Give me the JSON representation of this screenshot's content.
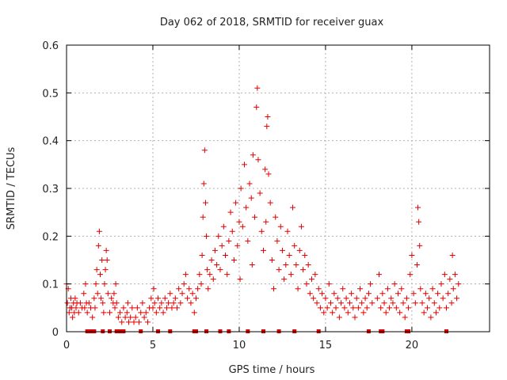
{
  "chart_data": {
    "type": "scatter",
    "title": "Day 062 of 2018, SRMTID for receiver guax",
    "xlabel": "GPS time / hours",
    "ylabel": "SRMTID / TECUs",
    "xlim": [
      0,
      24.5
    ],
    "ylim": [
      0,
      0.6
    ],
    "xticks": [
      0,
      5,
      10,
      15,
      20
    ],
    "xtick_labels": [
      "0",
      "5",
      "10",
      "15",
      "20"
    ],
    "yticks": [
      0,
      0.1,
      0.2,
      0.3,
      0.4,
      0.5,
      0.6
    ],
    "ytick_labels": [
      "0",
      "0.1",
      "0.2",
      "0.3",
      "0.4",
      "0.5",
      "0.6"
    ],
    "grid": true,
    "marker": "+",
    "color": "#e00000",
    "series": [
      {
        "name": "SRMTID",
        "points": [
          [
            0.0,
            0.1
          ],
          [
            0.05,
            0.06
          ],
          [
            0.1,
            0.09
          ],
          [
            0.15,
            0.04
          ],
          [
            0.2,
            0.05
          ],
          [
            0.25,
            0.07
          ],
          [
            0.3,
            0.05
          ],
          [
            0.35,
            0.03
          ],
          [
            0.4,
            0.06
          ],
          [
            0.45,
            0.04
          ],
          [
            0.5,
            0.07
          ],
          [
            0.55,
            0.05
          ],
          [
            0.6,
            0.06
          ],
          [
            0.7,
            0.04
          ],
          [
            0.8,
            0.06
          ],
          [
            0.9,
            0.05
          ],
          [
            1.0,
            0.08
          ],
          [
            1.05,
            0.05
          ],
          [
            1.1,
            0.1
          ],
          [
            1.15,
            0.06
          ],
          [
            1.2,
            0.04
          ],
          [
            1.3,
            0.06
          ],
          [
            1.4,
            0.05
          ],
          [
            1.5,
            0.03
          ],
          [
            1.6,
            0.07
          ],
          [
            1.65,
            0.05
          ],
          [
            1.7,
            0.1
          ],
          [
            1.75,
            0.13
          ],
          [
            1.8,
            0.08
          ],
          [
            1.85,
            0.18
          ],
          [
            1.9,
            0.21
          ],
          [
            1.95,
            0.12
          ],
          [
            2.0,
            0.07
          ],
          [
            2.05,
            0.15
          ],
          [
            2.1,
            0.06
          ],
          [
            2.15,
            0.04
          ],
          [
            2.2,
            0.1
          ],
          [
            2.25,
            0.13
          ],
          [
            2.3,
            0.17
          ],
          [
            2.35,
            0.15
          ],
          [
            2.4,
            0.08
          ],
          [
            2.5,
            0.04
          ],
          [
            2.6,
            0.07
          ],
          [
            2.7,
            0.06
          ],
          [
            2.75,
            0.08
          ],
          [
            2.8,
            0.05
          ],
          [
            2.85,
            0.1
          ],
          [
            2.9,
            0.06
          ],
          [
            3.0,
            0.03
          ],
          [
            3.1,
            0.04
          ],
          [
            3.2,
            0.02
          ],
          [
            3.3,
            0.05
          ],
          [
            3.4,
            0.03
          ],
          [
            3.5,
            0.04
          ],
          [
            3.55,
            0.06
          ],
          [
            3.6,
            0.02
          ],
          [
            3.7,
            0.03
          ],
          [
            3.8,
            0.05
          ],
          [
            3.9,
            0.02
          ],
          [
            4.0,
            0.03
          ],
          [
            4.1,
            0.05
          ],
          [
            4.2,
            0.02
          ],
          [
            4.3,
            0.04
          ],
          [
            4.4,
            0.06
          ],
          [
            4.5,
            0.03
          ],
          [
            4.6,
            0.04
          ],
          [
            4.7,
            0.02
          ],
          [
            4.8,
            0.05
          ],
          [
            4.9,
            0.07
          ],
          [
            5.0,
            0.05
          ],
          [
            5.05,
            0.09
          ],
          [
            5.1,
            0.06
          ],
          [
            5.2,
            0.04
          ],
          [
            5.3,
            0.07
          ],
          [
            5.4,
            0.05
          ],
          [
            5.5,
            0.06
          ],
          [
            5.6,
            0.04
          ],
          [
            5.7,
            0.07
          ],
          [
            5.8,
            0.05
          ],
          [
            5.9,
            0.06
          ],
          [
            6.0,
            0.08
          ],
          [
            6.1,
            0.05
          ],
          [
            6.2,
            0.06
          ],
          [
            6.3,
            0.07
          ],
          [
            6.4,
            0.05
          ],
          [
            6.5,
            0.09
          ],
          [
            6.6,
            0.06
          ],
          [
            6.7,
            0.08
          ],
          [
            6.8,
            0.1
          ],
          [
            6.9,
            0.12
          ],
          [
            7.0,
            0.07
          ],
          [
            7.1,
            0.09
          ],
          [
            7.2,
            0.06
          ],
          [
            7.3,
            0.08
          ],
          [
            7.4,
            0.04
          ],
          [
            7.5,
            0.07
          ],
          [
            7.6,
            0.09
          ],
          [
            7.7,
            0.12
          ],
          [
            7.8,
            0.1
          ],
          [
            7.85,
            0.16
          ],
          [
            7.9,
            0.24
          ],
          [
            7.95,
            0.31
          ],
          [
            8.0,
            0.38
          ],
          [
            8.05,
            0.27
          ],
          [
            8.1,
            0.2
          ],
          [
            8.15,
            0.13
          ],
          [
            8.2,
            0.09
          ],
          [
            8.3,
            0.12
          ],
          [
            8.4,
            0.15
          ],
          [
            8.5,
            0.11
          ],
          [
            8.6,
            0.17
          ],
          [
            8.7,
            0.14
          ],
          [
            8.8,
            0.2
          ],
          [
            8.9,
            0.13
          ],
          [
            9.0,
            0.18
          ],
          [
            9.1,
            0.22
          ],
          [
            9.2,
            0.16
          ],
          [
            9.3,
            0.12
          ],
          [
            9.4,
            0.19
          ],
          [
            9.5,
            0.25
          ],
          [
            9.6,
            0.21
          ],
          [
            9.7,
            0.15
          ],
          [
            9.8,
            0.27
          ],
          [
            9.9,
            0.18
          ],
          [
            10.0,
            0.23
          ],
          [
            10.05,
            0.11
          ],
          [
            10.1,
            0.3
          ],
          [
            10.2,
            0.22
          ],
          [
            10.3,
            0.35
          ],
          [
            10.4,
            0.26
          ],
          [
            10.5,
            0.19
          ],
          [
            10.6,
            0.31
          ],
          [
            10.7,
            0.28
          ],
          [
            10.75,
            0.14
          ],
          [
            10.8,
            0.37
          ],
          [
            10.9,
            0.24
          ],
          [
            11.0,
            0.47
          ],
          [
            11.05,
            0.51
          ],
          [
            11.1,
            0.36
          ],
          [
            11.2,
            0.29
          ],
          [
            11.3,
            0.21
          ],
          [
            11.4,
            0.17
          ],
          [
            11.5,
            0.34
          ],
          [
            11.55,
            0.23
          ],
          [
            11.6,
            0.43
          ],
          [
            11.65,
            0.45
          ],
          [
            11.7,
            0.33
          ],
          [
            11.8,
            0.27
          ],
          [
            11.9,
            0.15
          ],
          [
            12.0,
            0.09
          ],
          [
            12.1,
            0.24
          ],
          [
            12.2,
            0.19
          ],
          [
            12.3,
            0.13
          ],
          [
            12.4,
            0.22
          ],
          [
            12.5,
            0.17
          ],
          [
            12.6,
            0.11
          ],
          [
            12.7,
            0.14
          ],
          [
            12.8,
            0.21
          ],
          [
            12.9,
            0.16
          ],
          [
            13.0,
            0.12
          ],
          [
            13.1,
            0.26
          ],
          [
            13.2,
            0.18
          ],
          [
            13.3,
            0.14
          ],
          [
            13.4,
            0.09
          ],
          [
            13.5,
            0.17
          ],
          [
            13.6,
            0.22
          ],
          [
            13.7,
            0.13
          ],
          [
            13.8,
            0.16
          ],
          [
            13.9,
            0.1
          ],
          [
            14.0,
            0.14
          ],
          [
            14.1,
            0.08
          ],
          [
            14.2,
            0.11
          ],
          [
            14.3,
            0.07
          ],
          [
            14.4,
            0.12
          ],
          [
            14.5,
            0.06
          ],
          [
            14.6,
            0.09
          ],
          [
            14.7,
            0.05
          ],
          [
            14.8,
            0.08
          ],
          [
            14.9,
            0.04
          ],
          [
            15.0,
            0.07
          ],
          [
            15.1,
            0.05
          ],
          [
            15.2,
            0.1
          ],
          [
            15.3,
            0.06
          ],
          [
            15.4,
            0.04
          ],
          [
            15.5,
            0.08
          ],
          [
            15.6,
            0.05
          ],
          [
            15.7,
            0.07
          ],
          [
            15.8,
            0.03
          ],
          [
            15.9,
            0.06
          ],
          [
            16.0,
            0.09
          ],
          [
            16.1,
            0.05
          ],
          [
            16.2,
            0.07
          ],
          [
            16.3,
            0.04
          ],
          [
            16.4,
            0.06
          ],
          [
            16.5,
            0.08
          ],
          [
            16.6,
            0.05
          ],
          [
            16.7,
            0.03
          ],
          [
            16.8,
            0.07
          ],
          [
            16.9,
            0.05
          ],
          [
            17.0,
            0.09
          ],
          [
            17.1,
            0.06
          ],
          [
            17.2,
            0.04
          ],
          [
            17.3,
            0.07
          ],
          [
            17.4,
            0.05
          ],
          [
            17.5,
            0.08
          ],
          [
            17.6,
            0.1
          ],
          [
            17.7,
            0.06
          ],
          [
            18.0,
            0.07
          ],
          [
            18.1,
            0.12
          ],
          [
            18.2,
            0.05
          ],
          [
            18.3,
            0.08
          ],
          [
            18.4,
            0.06
          ],
          [
            18.5,
            0.04
          ],
          [
            18.6,
            0.09
          ],
          [
            18.7,
            0.05
          ],
          [
            18.8,
            0.07
          ],
          [
            18.9,
            0.06
          ],
          [
            19.0,
            0.1
          ],
          [
            19.1,
            0.05
          ],
          [
            19.2,
            0.08
          ],
          [
            19.3,
            0.04
          ],
          [
            19.4,
            0.09
          ],
          [
            19.5,
            0.06
          ],
          [
            19.6,
            0.03
          ],
          [
            19.7,
            0.07
          ],
          [
            19.8,
            0.05
          ],
          [
            19.9,
            0.12
          ],
          [
            20.0,
            0.16
          ],
          [
            20.1,
            0.08
          ],
          [
            20.2,
            0.06
          ],
          [
            20.3,
            0.14
          ],
          [
            20.35,
            0.26
          ],
          [
            20.4,
            0.23
          ],
          [
            20.45,
            0.18
          ],
          [
            20.5,
            0.09
          ],
          [
            20.6,
            0.06
          ],
          [
            20.7,
            0.04
          ],
          [
            20.8,
            0.08
          ],
          [
            20.9,
            0.05
          ],
          [
            21.0,
            0.07
          ],
          [
            21.1,
            0.03
          ],
          [
            21.2,
            0.09
          ],
          [
            21.3,
            0.06
          ],
          [
            21.4,
            0.04
          ],
          [
            21.5,
            0.08
          ],
          [
            21.6,
            0.05
          ],
          [
            21.7,
            0.1
          ],
          [
            21.8,
            0.07
          ],
          [
            21.9,
            0.12
          ],
          [
            22.0,
            0.05
          ],
          [
            22.1,
            0.08
          ],
          [
            22.2,
            0.11
          ],
          [
            22.3,
            0.06
          ],
          [
            22.35,
            0.16
          ],
          [
            22.4,
            0.09
          ],
          [
            22.5,
            0.12
          ],
          [
            22.6,
            0.07
          ],
          [
            22.7,
            0.1
          ]
        ]
      }
    ],
    "gap_marks_x": [
      1.2,
      1.3,
      1.4,
      1.5,
      1.6,
      2.1,
      2.5,
      2.9,
      3.0,
      3.1,
      3.2,
      3.3,
      4.3,
      5.3,
      6.0,
      7.4,
      7.5,
      8.1,
      8.9,
      9.4,
      10.5,
      11.4,
      12.3,
      13.2,
      14.6,
      17.5,
      18.2,
      18.3,
      19.7,
      19.8,
      22.0
    ]
  }
}
